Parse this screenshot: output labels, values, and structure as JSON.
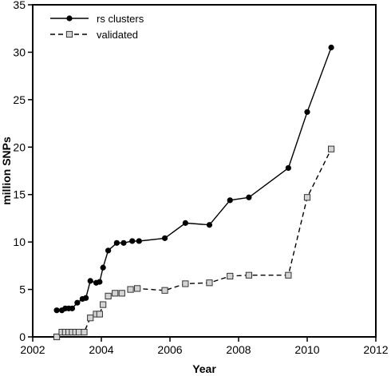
{
  "chart_data": {
    "type": "line",
    "title": "",
    "xlabel": "Year",
    "ylabel": "million SNPs",
    "xlim": [
      2002,
      2012
    ],
    "ylim": [
      0,
      35
    ],
    "x_ticks": [
      "2002",
      "2004",
      "2006",
      "2008",
      "2010",
      "2012"
    ],
    "y_ticks": [
      "0",
      "5",
      "10",
      "15",
      "20",
      "25",
      "30",
      "35"
    ],
    "grid": false,
    "legend_position": "top-left",
    "series": [
      {
        "name": "rs clusters",
        "style": "solid",
        "marker": "filled-circle",
        "color": "#000000",
        "x": [
          2002.7,
          2002.85,
          2002.95,
          2003.05,
          2003.15,
          2003.3,
          2003.45,
          2003.55,
          2003.68,
          2003.85,
          2003.95,
          2004.05,
          2004.2,
          2004.45,
          2004.65,
          2004.9,
          2005.1,
          2005.85,
          2006.45,
          2007.15,
          2007.75,
          2008.3,
          2009.45,
          2010.0,
          2010.7
        ],
        "y": [
          2.8,
          2.8,
          3.0,
          3.0,
          3.0,
          3.6,
          4.0,
          4.1,
          5.9,
          5.7,
          5.8,
          7.3,
          9.1,
          9.9,
          9.9,
          10.1,
          10.1,
          10.4,
          12.0,
          11.8,
          14.4,
          14.7,
          17.8,
          23.7,
          30.5
        ]
      },
      {
        "name": "validated",
        "style": "dashed",
        "marker": "open-square",
        "color": "#808080",
        "x": [
          2002.7,
          2002.85,
          2002.95,
          2003.05,
          2003.15,
          2003.25,
          2003.35,
          2003.5,
          2003.68,
          2003.85,
          2003.95,
          2004.05,
          2004.2,
          2004.4,
          2004.6,
          2004.85,
          2005.05,
          2005.85,
          2006.45,
          2007.15,
          2007.75,
          2008.3,
          2009.45,
          2010.0,
          2010.7
        ],
        "y": [
          0.0,
          0.5,
          0.5,
          0.5,
          0.5,
          0.5,
          0.5,
          0.5,
          2.0,
          2.4,
          2.4,
          3.4,
          4.3,
          4.6,
          4.6,
          5.0,
          5.1,
          4.9,
          5.6,
          5.7,
          6.4,
          6.5,
          6.5,
          14.7,
          19.8
        ]
      }
    ]
  }
}
